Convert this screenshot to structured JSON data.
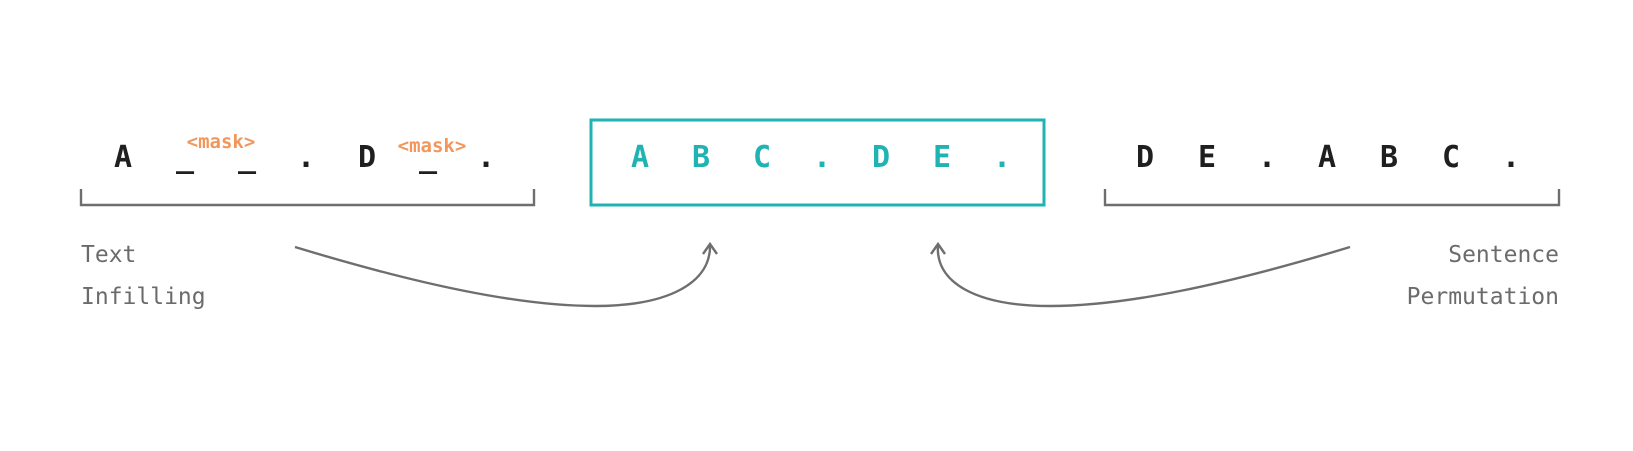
{
  "text_infilling": {
    "tokens": [
      "A",
      "_",
      "_",
      ".",
      "D",
      "_",
      "."
    ],
    "masks": [
      "<mask>",
      "<mask>"
    ],
    "label_line1": "Text",
    "label_line2": "Infilling"
  },
  "target": {
    "tokens": [
      "A",
      "B",
      "C",
      ".",
      "D",
      "E",
      "."
    ],
    "border_color": "#1fb3b3"
  },
  "sentence_permutation": {
    "tokens": [
      "D",
      "E",
      ".",
      "A",
      "B",
      "C",
      "."
    ],
    "label_line1": "Sentence",
    "label_line2": "Permutation"
  },
  "colors": {
    "token": "#1f1f1f",
    "target_token": "#1fb3b3",
    "mask": "#f2965b",
    "label": "#6b6b6b",
    "line": "#6e6e6e"
  }
}
